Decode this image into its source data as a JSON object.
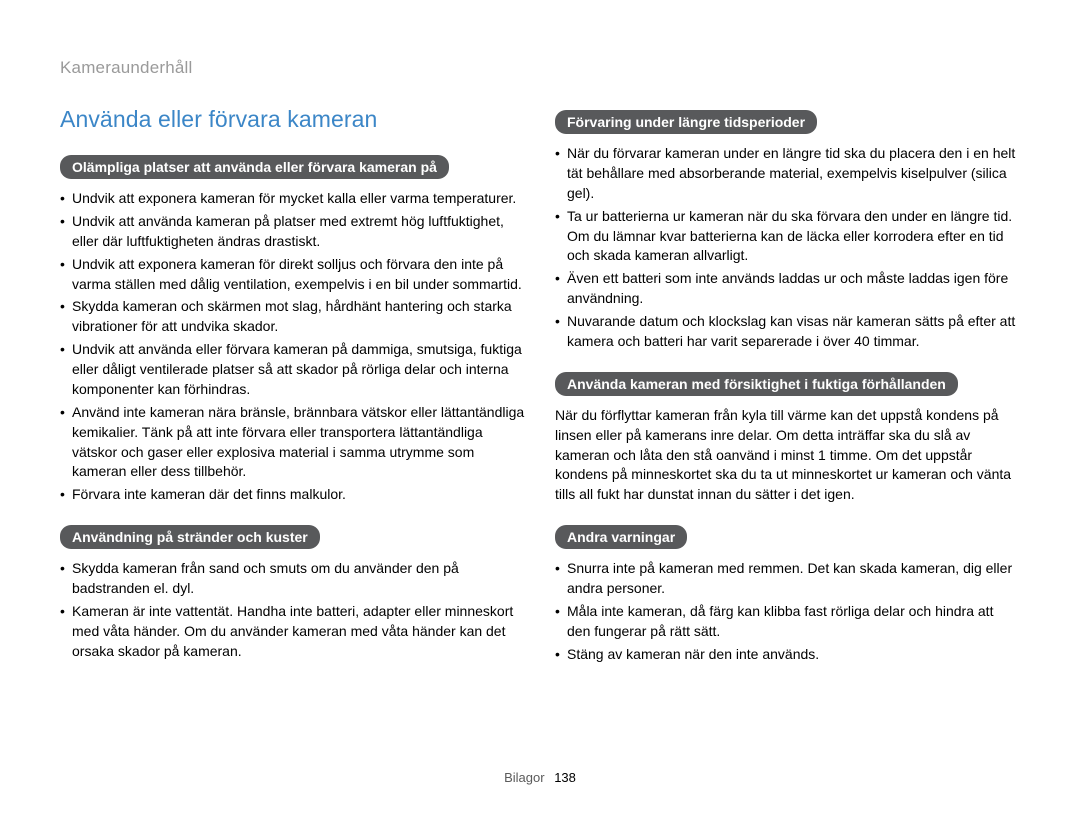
{
  "breadcrumb": "Kameraunderhåll",
  "main_title": "Använda eller förvara kameran",
  "left": {
    "section1": {
      "heading": "Olämpliga platser att använda eller förvara kameran på",
      "items": [
        "Undvik att exponera kameran för mycket kalla eller varma temperaturer.",
        "Undvik att använda kameran på platser med extremt hög luftfuktighet, eller där luftfuktigheten ändras drastiskt.",
        "Undvik att exponera kameran för direkt solljus och förvara den inte på varma ställen med dålig ventilation, exempelvis i en bil under sommartid.",
        "Skydda kameran och skärmen mot slag, hårdhänt hantering och starka vibrationer för att undvika skador.",
        "Undvik att använda eller förvara kameran på dammiga, smutsiga, fuktiga eller dåligt ventilerade platser så att skador på rörliga delar och interna komponenter kan förhindras.",
        "Använd inte kameran nära bränsle, brännbara vätskor eller lättantändliga kemikalier. Tänk på att inte förvara eller transportera lättantändliga vätskor och gaser eller explosiva material i samma utrymme som kameran eller dess tillbehör.",
        "Förvara inte kameran där det finns malkulor."
      ]
    },
    "section2": {
      "heading": "Användning på stränder och kuster",
      "items": [
        "Skydda kameran från sand och smuts om du använder den på badstranden el. dyl.",
        "Kameran är inte vattentät. Handha inte batteri, adapter eller minneskort med våta händer. Om du använder kameran med våta händer kan det orsaka skador på kameran."
      ]
    }
  },
  "right": {
    "section1": {
      "heading": "Förvaring under längre tidsperioder",
      "items": [
        "När du förvarar kameran under en längre tid ska du placera den i en helt tät behållare med absorberande material, exempelvis kiselpulver (silica gel).",
        "Ta ur batterierna ur kameran när du ska förvara den under en längre tid. Om du lämnar kvar batterierna kan de läcka eller korrodera efter en tid och skada kameran allvarligt.",
        "Även ett batteri som inte används laddas ur och måste laddas igen före användning.",
        "Nuvarande datum och klockslag kan visas när kameran sätts på efter att kamera och batteri har varit separerade i över 40 timmar."
      ]
    },
    "section2": {
      "heading": "Använda kameran med försiktighet i fuktiga förhållanden",
      "paragraph": "När du förflyttar kameran från kyla till värme kan det uppstå kondens på linsen eller på kamerans inre delar. Om detta inträffar ska du slå av kameran och låta den stå oanvänd i minst 1 timme. Om det uppstår kondens på minneskortet ska du ta ut minneskortet ur kameran och vänta tills all fukt har dunstat innan du sätter i det igen."
    },
    "section3": {
      "heading": "Andra varningar",
      "items": [
        "Snurra inte på kameran med remmen. Det kan skada kameran, dig eller andra personer.",
        "Måla inte kameran, då färg kan klibba fast rörliga delar och hindra att den fungerar på rätt sätt.",
        "Stäng av kameran när den inte används."
      ]
    }
  },
  "footer": {
    "label": "Bilagor",
    "page": "138"
  }
}
